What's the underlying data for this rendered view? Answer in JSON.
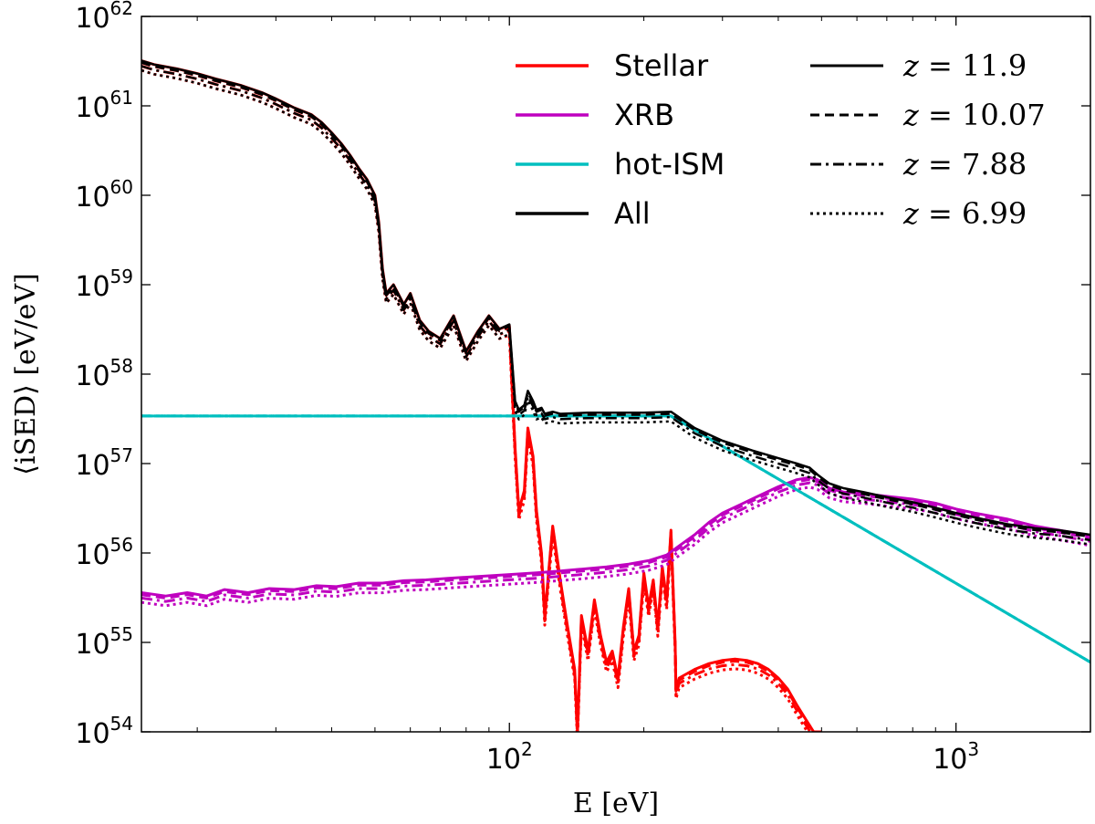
{
  "chart_data": {
    "type": "line",
    "scale": {
      "x": "log",
      "y": "log"
    },
    "xlim": [
      15,
      2000
    ],
    "ylim": [
      1e+54,
      1e+62
    ],
    "xlabel": "E [eV]",
    "ylabel": "⟨iSED⟩ [eV/eV]",
    "grid": false,
    "legend_position": "top-right",
    "x_ticks": [
      {
        "value": 100,
        "base": "10",
        "exp": "2"
      },
      {
        "value": 1000,
        "base": "10",
        "exp": "3"
      }
    ],
    "y_ticks": [
      {
        "value": 1e+54,
        "base": "10",
        "exp": "54"
      },
      {
        "value": 1e+55,
        "base": "10",
        "exp": "55"
      },
      {
        "value": 1e+56,
        "base": "10",
        "exp": "56"
      },
      {
        "value": 1e+57,
        "base": "10",
        "exp": "57"
      },
      {
        "value": 1e+58,
        "base": "10",
        "exp": "58"
      },
      {
        "value": 1e+59,
        "base": "10",
        "exp": "59"
      },
      {
        "value": 1e+60,
        "base": "10",
        "exp": "60"
      },
      {
        "value": 1e+61,
        "base": "10",
        "exp": "61"
      },
      {
        "value": 1e+62,
        "base": "10",
        "exp": "62"
      }
    ],
    "components": [
      {
        "name": "Stellar",
        "color": "#ff0000"
      },
      {
        "name": "XRB",
        "color": "#bf00bf"
      },
      {
        "name": "hot-ISM",
        "color": "#00bfbf"
      },
      {
        "name": "All",
        "color": "#000000"
      }
    ],
    "redshifts": [
      {
        "label": "z = 11.9",
        "var": "z",
        "value": "11.9",
        "linestyle": "solid",
        "scale": 1.0
      },
      {
        "label": "z = 10.07",
        "var": "z",
        "value": "10.07",
        "linestyle": "dashed",
        "scale": 0.95
      },
      {
        "label": "z = 7.88",
        "var": "z",
        "value": "7.88",
        "linestyle": "dashdot",
        "scale": 0.87
      },
      {
        "label": "z = 6.99",
        "var": "z",
        "value": "6.99",
        "linestyle": "dotted",
        "scale": 0.78
      }
    ],
    "series": [
      {
        "name": "Stellar",
        "x": [
          15,
          16,
          18,
          20,
          22,
          25,
          28,
          30,
          33,
          36,
          38,
          40,
          42,
          44,
          46,
          48,
          50,
          51,
          52,
          53,
          55,
          58,
          60,
          63,
          66,
          70,
          75,
          80,
          85,
          90,
          95,
          100,
          103,
          105,
          108,
          110,
          113,
          115,
          118,
          120,
          125,
          130,
          135,
          140,
          142,
          145,
          150,
          155,
          160,
          165,
          170,
          175,
          180,
          185,
          190,
          195,
          200,
          205,
          210,
          215,
          220,
          225,
          230,
          235,
          236,
          240,
          260,
          280,
          300,
          320,
          340,
          360,
          380,
          400,
          420,
          440,
          460,
          480,
          500
        ],
        "y": [
          3.2e+61,
          2.9e+61,
          2.6e+61,
          2.3e+61,
          2e+61,
          1.7e+61,
          1.4e+61,
          1.2e+61,
          9.5e+60,
          8e+60,
          6.5e+60,
          5e+60,
          3.8e+60,
          2.8e+60,
          2e+60,
          1.5e+60,
          1e+60,
          5e+59,
          1.5e+59,
          8e+58,
          1e+59,
          6e+58,
          8e+58,
          4e+58,
          3e+58,
          2.5e+58,
          4.5e+58,
          1.8e+58,
          3e+58,
          4.5e+58,
          3.2e+58,
          3.5e+58,
          1.5e+57,
          3e+56,
          5e+56,
          2.5e+57,
          1.2e+57,
          3e+56,
          1e+56,
          2e+55,
          2e+56,
          5e+55,
          1.5e+55,
          5e+54,
          1e+54,
          2e+55,
          8e+54,
          3e+55,
          1.2e+55,
          6e+54,
          8e+54,
          4e+54,
          1.5e+55,
          4e+55,
          8e+54,
          1.2e+55,
          6e+55,
          2.5e+55,
          5e+55,
          1.5e+55,
          7e+55,
          3e+55,
          1.8e+56,
          1e+55,
          3e+54,
          4e+54,
          5e+54,
          5.8e+54,
          6.3e+54,
          6.5e+54,
          6.3e+54,
          5.8e+54,
          5e+54,
          4e+54,
          3e+54,
          2e+54,
          1.4e+54,
          1e+54,
          1e+54
        ]
      },
      {
        "name": "XRB",
        "x": [
          15,
          17,
          19,
          21,
          23,
          26,
          29,
          33,
          37,
          41,
          46,
          52,
          58,
          65,
          73,
          82,
          92,
          103,
          115,
          130,
          145,
          165,
          185,
          205,
          225,
          240,
          260,
          280,
          300,
          330,
          360,
          400,
          440,
          470,
          490,
          520,
          560,
          620,
          700,
          800,
          900,
          1000,
          1100,
          1300,
          1500,
          1700,
          2000
        ],
        "y": [
          3.6e+55,
          3.3e+55,
          3.6e+55,
          3.3e+55,
          3.9e+55,
          3.6e+55,
          4e+55,
          3.9e+55,
          4.3e+55,
          4.2e+55,
          4.6e+55,
          4.6e+55,
          4.9e+55,
          5e+55,
          5.2e+55,
          5.4e+55,
          5.6e+55,
          5.8e+55,
          6e+55,
          6.3e+55,
          6.6e+55,
          7e+55,
          7.5e+55,
          8.2e+55,
          9.5e+55,
          1.2e+56,
          1.6e+56,
          2.2e+56,
          2.8e+56,
          3.5e+56,
          4.3e+56,
          5.5e+56,
          6.6e+56,
          7e+56,
          6.6e+56,
          5.3e+56,
          4.8e+56,
          4.6e+56,
          4.3e+56,
          4e+56,
          3.6e+56,
          3.1e+56,
          2.8e+56,
          2.4e+56,
          2e+56,
          1.8e+56,
          1.55e+56
        ]
      },
      {
        "name": "hot-ISM",
        "x": [
          15,
          230,
          2000
        ],
        "y": [
          3.4e+57,
          3.4e+57,
          6e+54
        ]
      },
      {
        "name": "All",
        "x": [
          15,
          16,
          18,
          20,
          22,
          25,
          28,
          30,
          33,
          36,
          38,
          40,
          42,
          44,
          46,
          48,
          50,
          51,
          52,
          53,
          55,
          58,
          60,
          63,
          66,
          70,
          75,
          80,
          85,
          90,
          95,
          100,
          103,
          105,
          108,
          110,
          113,
          115,
          118,
          120,
          125,
          130,
          150,
          180,
          200,
          230,
          260,
          300,
          350,
          400,
          440,
          470,
          490,
          520,
          560,
          620,
          700,
          800,
          900,
          1000,
          1100,
          1300,
          1500,
          1700,
          2000
        ],
        "y": [
          3.2e+61,
          2.9e+61,
          2.6e+61,
          2.3e+61,
          2e+61,
          1.7e+61,
          1.4e+61,
          1.2e+61,
          9.5e+60,
          8e+60,
          6.5e+60,
          5e+60,
          3.8e+60,
          2.8e+60,
          2e+60,
          1.5e+60,
          1e+60,
          5e+59,
          1.5e+59,
          8e+58,
          1e+59,
          6e+58,
          8e+58,
          4e+58,
          3e+58,
          2.5e+58,
          4.5e+58,
          1.8e+58,
          3e+58,
          4.5e+58,
          3.2e+58,
          3.6e+58,
          5e+57,
          4e+57,
          4.5e+57,
          6.5e+57,
          5e+57,
          4e+57,
          4.2e+57,
          3.6e+57,
          3.8e+57,
          3.6e+57,
          3.7e+57,
          3.7e+57,
          3.7e+57,
          3.8e+57,
          2.5e+57,
          1.8e+57,
          1.4e+57,
          1.15e+57,
          1e+57,
          9e+56,
          7.5e+56,
          6e+56,
          5.3e+56,
          4.8e+56,
          4.2e+56,
          3.7e+56,
          3.2e+56,
          2.8e+56,
          2.5e+56,
          2.1e+56,
          1.9e+56,
          1.8e+56,
          1.6e+56
        ]
      }
    ]
  }
}
